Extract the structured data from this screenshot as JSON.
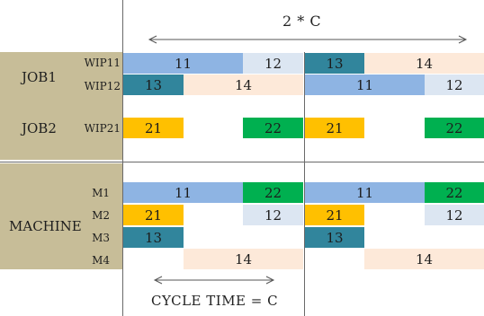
{
  "top_span_label": "2 * C",
  "bottom_span_label": "CYCLE TIME = C",
  "groups": {
    "job1": "JOB1",
    "job2": "JOB2",
    "machine": "MACHINE"
  },
  "rows": {
    "wip11": "WIP11",
    "wip12": "WIP12",
    "wip21": "WIP21",
    "m1": "M1",
    "m2": "M2",
    "m3": "M3",
    "m4": "M4"
  },
  "colors": {
    "light_blue": "#8eb4e3",
    "pale_blue": "#dce6f2",
    "teal": "#31859c",
    "peach": "#fde9d9",
    "amber": "#ffc000",
    "green": "#00b050",
    "tan_band": "#c7bd98"
  },
  "bars": {
    "wip11": [
      "11",
      "12",
      "13",
      "14"
    ],
    "wip12": [
      "13",
      "14",
      "11",
      "12"
    ],
    "wip21": [
      "21",
      "22",
      "21",
      "22"
    ],
    "m1": [
      "11",
      "22",
      "11",
      "22"
    ],
    "m2": [
      "21",
      "12",
      "21",
      "12"
    ],
    "m3": [
      "13",
      "13"
    ],
    "m4": [
      "14",
      "14"
    ]
  }
}
